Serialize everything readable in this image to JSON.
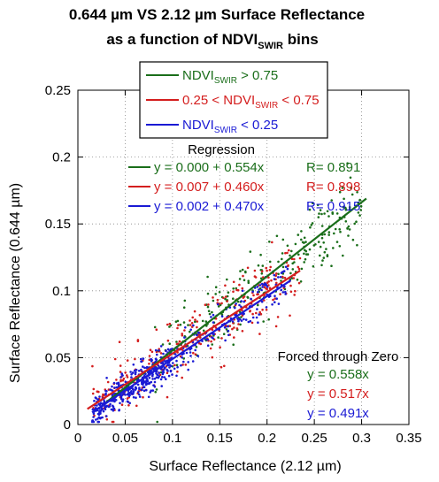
{
  "chart_data": {
    "type": "scatter",
    "title_line1": "0.644 µm VS 2.12 µm Surface Reflectance",
    "title_line2_prefix": "as a function of NDVI",
    "title_line2_sub": "SWIR",
    "title_line2_suffix": " bins",
    "xlabel": "Surface Reflectance (2.12 µm)",
    "ylabel": "Surface Reflectance (0.644 µm)",
    "xlim": [
      0,
      0.35
    ],
    "ylim": [
      0,
      0.25
    ],
    "x_ticks": [
      0,
      0.05,
      0.1,
      0.15,
      0.2,
      0.25,
      0.3,
      0.35
    ],
    "x_tick_labels": [
      "0",
      "0.05",
      "0.1",
      "0.15",
      "0.2",
      "0.25",
      "0.3",
      "0.35"
    ],
    "y_ticks": [
      0,
      0.05,
      0.1,
      0.15,
      0.2,
      0.25
    ],
    "y_tick_labels": [
      "0",
      "0.05",
      "0.1",
      "0.15",
      "0.2",
      "0.25"
    ],
    "grid": true,
    "legend_placement": "top-center",
    "series": [
      {
        "legend_pre": "NDVI",
        "legend_sub": "SWIR",
        "legend_post": " > 0.75",
        "color": "#1a6e1a",
        "regression_text": "y = 0.000 + 0.554x",
        "r_text": "R= 0.891",
        "intercept": 0.0,
        "slope": 0.554,
        "fit_x_range": [
          0.03,
          0.305
        ],
        "forced_text": "y = 0.558x",
        "point_clusters": [
          {
            "x_range": [
              0.08,
              0.3
            ],
            "count": 260,
            "slope": 0.554,
            "spread": 0.013
          }
        ]
      },
      {
        "legend_pre": "0.25 < NDVI",
        "legend_sub": "SWIR",
        "legend_post": " < 0.75",
        "color": "#d41e1e",
        "regression_text": "y = 0.007 + 0.460x",
        "r_text": "R= 0.898",
        "intercept": 0.007,
        "slope": 0.46,
        "fit_x_range": [
          0.01,
          0.235
        ],
        "forced_text": "y = 0.517x",
        "point_clusters": [
          {
            "x_range": [
              0.015,
              0.235
            ],
            "count": 300,
            "slope": 0.485,
            "spread": 0.012
          }
        ]
      },
      {
        "legend_pre": "NDVI",
        "legend_sub": "SWIR",
        "legend_post": " < 0.25",
        "color": "#1a1ad4",
        "regression_text": "y = 0.002 + 0.470x",
        "r_text": "R= 0.915",
        "intercept": 0.002,
        "slope": 0.47,
        "fit_x_range": [
          0.015,
          0.225
        ],
        "forced_text": "y = 0.491x",
        "point_clusters": [
          {
            "x_range": [
              0.015,
              0.1
            ],
            "count": 420,
            "slope": 0.49,
            "spread": 0.006
          },
          {
            "x_range": [
              0.1,
              0.225
            ],
            "count": 160,
            "slope": 0.48,
            "spread": 0.008
          }
        ]
      }
    ],
    "regression_heading": "Regression",
    "forced_heading": "Forced through Zero"
  }
}
